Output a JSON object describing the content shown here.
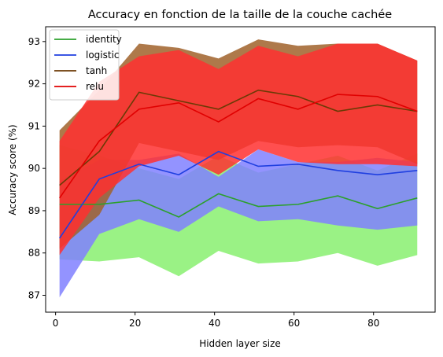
{
  "chart_data": {
    "type": "line",
    "title": "Accuracy en fonction de la taille de la couche cachée",
    "xlabel": "Hidden layer size",
    "ylabel": "Accuracy score (%)",
    "xlim": [
      -2.5,
      95.5
    ],
    "ylim": [
      86.6,
      93.35
    ],
    "xticks": [
      0,
      20,
      40,
      60,
      80
    ],
    "yticks": [
      87,
      88,
      89,
      90,
      91,
      92,
      93
    ],
    "grid": false,
    "legend_position": "top-left",
    "x": [
      1,
      11,
      21,
      31,
      41,
      51,
      61,
      71,
      81,
      91
    ],
    "series": [
      {
        "name": "identity",
        "color": "#2ca02c",
        "band_color": "#88f070",
        "values": [
          89.15,
          89.15,
          89.25,
          88.85,
          89.4,
          89.1,
          89.15,
          89.35,
          89.05,
          89.3
        ],
        "band_lower": [
          87.85,
          87.8,
          87.9,
          87.45,
          88.05,
          87.75,
          87.8,
          88.0,
          87.7,
          87.95
        ],
        "band_upper": [
          90.55,
          90.3,
          90.0,
          89.75,
          90.3,
          89.9,
          90.1,
          90.3,
          89.95,
          90.35
        ]
      },
      {
        "name": "logistic",
        "color": "#1f3fe0",
        "band_color": "#8080ff",
        "values": [
          88.35,
          89.75,
          90.1,
          89.85,
          90.4,
          90.05,
          90.1,
          89.95,
          89.85,
          89.95
        ],
        "band_lower": [
          86.95,
          88.45,
          88.8,
          88.5,
          89.1,
          88.75,
          88.8,
          88.65,
          88.55,
          88.65
        ],
        "band_upper": [
          89.7,
          90.2,
          90.2,
          90.35,
          89.8,
          90.45,
          90.15,
          90.15,
          90.25,
          90.15
        ]
      },
      {
        "name": "tanh",
        "color": "#6b3a05",
        "band_color": "#a0622a",
        "values": [
          89.6,
          90.4,
          91.8,
          91.6,
          91.4,
          91.85,
          91.7,
          91.35,
          91.5,
          91.35
        ],
        "band_lower": [
          88.1,
          88.9,
          90.6,
          90.4,
          90.2,
          90.65,
          90.5,
          90.55,
          90.5,
          90.1
        ],
        "band_upper": [
          90.9,
          91.85,
          92.95,
          92.85,
          92.6,
          93.05,
          92.9,
          92.95,
          92.95,
          92.55
        ]
      },
      {
        "name": "relu",
        "color": "#e00000",
        "band_color": "#ff3030",
        "values": [
          89.3,
          90.65,
          91.4,
          91.55,
          91.1,
          91.65,
          91.4,
          91.75,
          91.7,
          91.35
        ],
        "band_lower": [
          87.95,
          89.3,
          90.05,
          90.3,
          89.85,
          90.45,
          90.15,
          90.1,
          90.1,
          90.05
        ],
        "band_upper": [
          90.65,
          92.05,
          92.65,
          92.8,
          92.35,
          92.9,
          92.65,
          92.95,
          92.95,
          92.55
        ]
      }
    ]
  }
}
